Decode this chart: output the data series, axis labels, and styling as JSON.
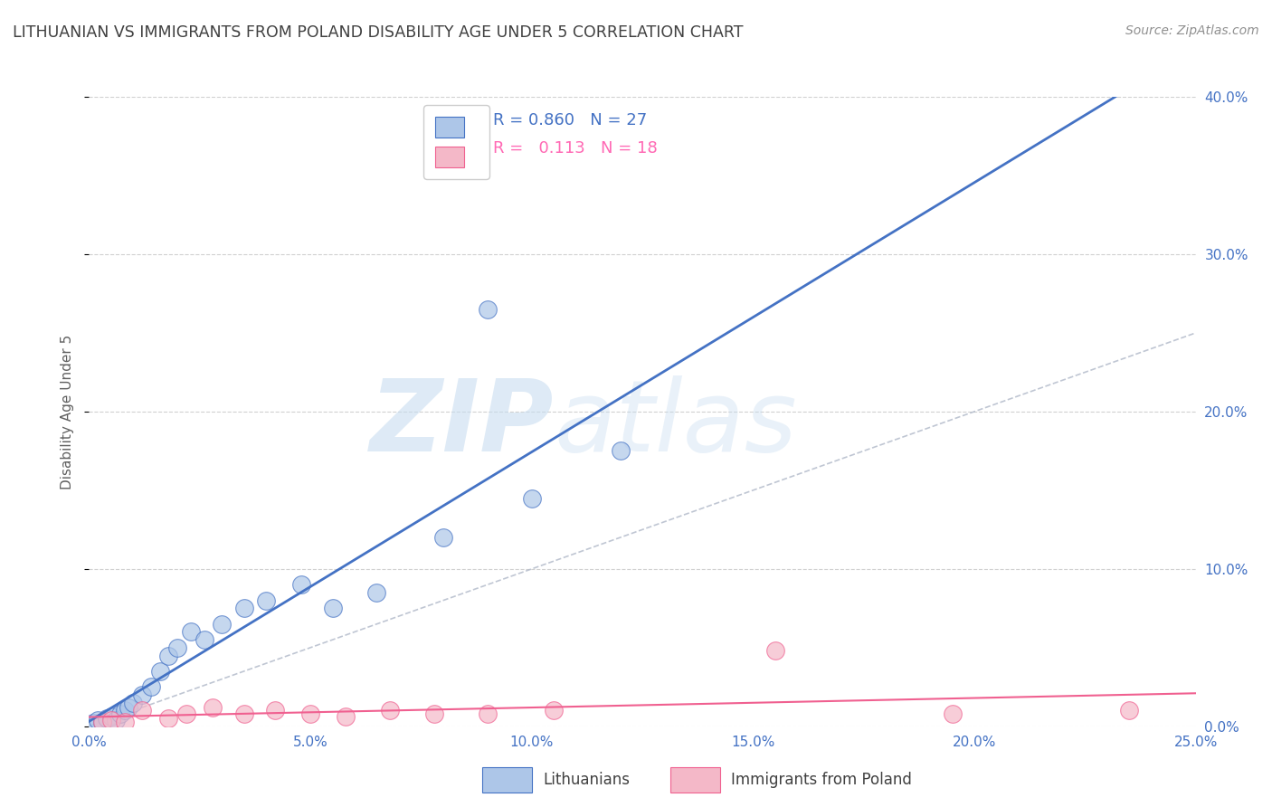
{
  "title": "LITHUANIAN VS IMMIGRANTS FROM POLAND DISABILITY AGE UNDER 5 CORRELATION CHART",
  "source": "Source: ZipAtlas.com",
  "ylabel_label": "Disability Age Under 5",
  "xlim": [
    0.0,
    0.25
  ],
  "ylim": [
    0.0,
    0.4
  ],
  "xlabel_vals": [
    0.0,
    0.05,
    0.1,
    0.15,
    0.2,
    0.25
  ],
  "xlabel_ticks": [
    "0.0%",
    "5.0%",
    "10.0%",
    "15.0%",
    "20.0%",
    "25.0%"
  ],
  "ylabel_vals": [
    0.0,
    0.1,
    0.2,
    0.3,
    0.4
  ],
  "ylabel_ticks_right": [
    "0.0%",
    "10.0%",
    "20.0%",
    "30.0%",
    "40.0%"
  ],
  "watermark_zip": "ZIP",
  "watermark_atlas": "atlas",
  "blue_R": 0.86,
  "blue_N": 27,
  "pink_R": 0.113,
  "pink_N": 18,
  "blue_color": "#adc6e8",
  "blue_edge_color": "#4472C4",
  "pink_color": "#f4b8c8",
  "pink_edge_color": "#f06090",
  "blue_line_color": "#4472C4",
  "pink_line_color": "#f06090",
  "diagonal_color": "#b0b8c8",
  "blue_x": [
    0.001,
    0.002,
    0.003,
    0.004,
    0.005,
    0.006,
    0.007,
    0.008,
    0.009,
    0.01,
    0.012,
    0.014,
    0.016,
    0.018,
    0.02,
    0.023,
    0.026,
    0.03,
    0.035,
    0.04,
    0.048,
    0.055,
    0.065,
    0.08,
    0.1,
    0.12,
    0.09
  ],
  "blue_y": [
    0.002,
    0.004,
    0.003,
    0.005,
    0.006,
    0.004,
    0.008,
    0.01,
    0.012,
    0.015,
    0.02,
    0.025,
    0.035,
    0.045,
    0.05,
    0.06,
    0.055,
    0.065,
    0.075,
    0.08,
    0.09,
    0.075,
    0.085,
    0.12,
    0.145,
    0.175,
    0.265
  ],
  "pink_x": [
    0.003,
    0.005,
    0.008,
    0.012,
    0.018,
    0.022,
    0.028,
    0.035,
    0.042,
    0.05,
    0.058,
    0.068,
    0.078,
    0.09,
    0.105,
    0.155,
    0.195,
    0.235
  ],
  "pink_y": [
    0.003,
    0.004,
    0.003,
    0.01,
    0.005,
    0.008,
    0.012,
    0.008,
    0.01,
    0.008,
    0.006,
    0.01,
    0.008,
    0.008,
    0.01,
    0.048,
    0.008,
    0.01
  ],
  "legend_label_blue": "Lithuanians",
  "legend_label_pink": "Immigrants from Poland",
  "background_color": "#ffffff",
  "grid_color": "#d0d0d0",
  "title_color": "#404040",
  "source_color": "#909090"
}
